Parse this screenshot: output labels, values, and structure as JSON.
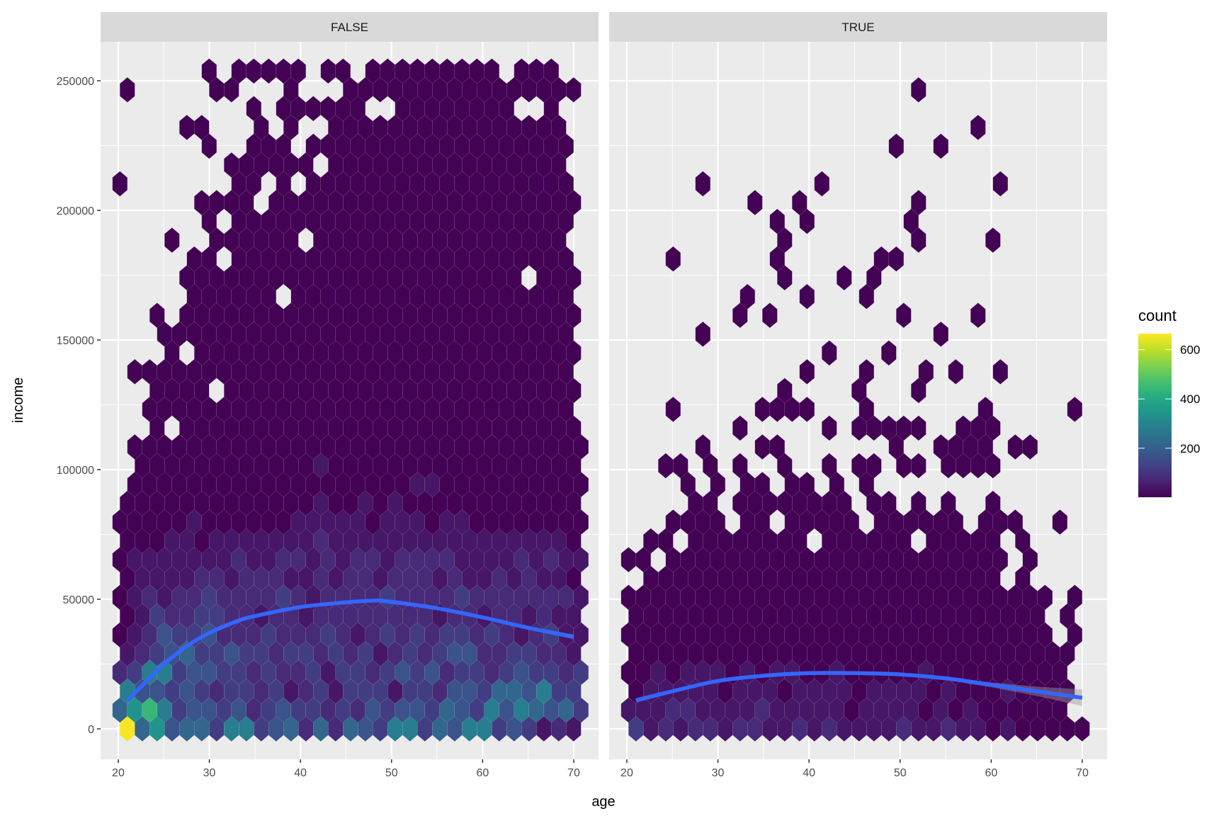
{
  "chart_data": {
    "type": "hexbin",
    "xlabel": "age",
    "ylabel": "income",
    "xlim": [
      18.06,
      72.7
    ],
    "ylim": [
      -11700,
      265000
    ],
    "x_ticks": [
      20,
      30,
      40,
      50,
      60,
      70
    ],
    "x_tick_labels": [
      "20",
      "30",
      "40",
      "50",
      "60",
      "70"
    ],
    "x_minor": [
      25,
      35,
      45,
      55,
      65
    ],
    "y_ticks": [
      0,
      50000,
      100000,
      150000,
      200000,
      250000
    ],
    "y_tick_labels": [
      "0",
      "50000",
      "100000",
      "150000",
      "200000",
      "250000"
    ],
    "y_minor": [
      25000,
      75000,
      125000,
      175000,
      225000
    ],
    "grid": true,
    "hex_grid": {
      "age_origin": 21,
      "age_step": 1.633,
      "odd_row_age_shift": -0.815,
      "income_step": 7250,
      "rows_order": "top row first (row 35) down to row 0 (income 0)",
      "level_counts": {
        "0": 3,
        "1": 40,
        "2": 80,
        "3": 120,
        "4": 170,
        "5": 220,
        "6": 280,
        "7": 340,
        "8": 440,
        "9": 660
      }
    },
    "panels": [
      {
        "label": "FALSE",
        "hex_rows": [
          "......0.00000.00.000000000.000..",
          "0.....00...0...0000000000000000.",
          ".........0.000000..00000000..0..",
          "....00...0.0..0000000000000000..",
          "......0..000.000000000000000000.",
          ".......000000.0000000000000000..",
          "0.......00.0.000000000000000000.",
          ".....0000.000000000000000000000.",
          "......0.00000000000000000000000.",
          "...0..000000.00000000000000000..",
          ".....00.00000000000000000000000.",
          "....00000000000000000000000.000.",
          ".....000000.0000000000000000000.",
          "..0.000000000000000000000000000.",
          "...0000000000000000000000000000.",
          "...0.00000000000000000000000000.",
          ".000000000000000000000000000000.",
          "..0000.000000000000000000000000.",
          "..00000000000000000000000000000.",
          "..0.000000000000000000000000000.",
          ".0000000000000000000000000000000",
          ".000000000000100000000000000000.",
          ".0000000000000000000110000000000",
          "0000000000000100101000000000000.",
          "00000100000011111011101100000000",
          "0001101111111211111111111111110.",
          "01111111211221212212222111121211",
          "0111122122211212212221211212110.",
          "01212232222321222232222322222221",
          "0132233221221222222221221221211.",
          "01243342223222321232323323212311",
          "1234533433233232312323442233221.",
          "23663443323223133234342332343323",
          "6443432332312313331332443554633.",
          "57863443423433232434435436465453",
          "9574553663452525436635466343121."
        ],
        "smooth": {
          "age": [
            21,
            23,
            25,
            27,
            28,
            30,
            33,
            35,
            40,
            45,
            48,
            50,
            55,
            60,
            65,
            70
          ],
          "income": [
            11000,
            18000,
            25000,
            30500,
            33000,
            37000,
            41500,
            43500,
            47000,
            48800,
            49500,
            49000,
            46500,
            43000,
            39000,
            35500
          ],
          "se": [
            900,
            700,
            600,
            500,
            500,
            400,
            400,
            400,
            400,
            400,
            400,
            400,
            400,
            500,
            600,
            900
          ]
        }
      },
      {
        "label": "TRUE",
        "hex_rows": [
          "................................",
          "...................0............",
          "................................",
          ".......................0........",
          "..................0..0..........",
          "................................",
          ".....0.......0...........0......",
          "........0..0.......0............",
          "..........0.0......0............",
          "..........0........0....0.......",
          "...0......0......00.............",
          "..........0...0.0...............",
          "........0...0...0...............",
          ".......0.0........0....0........",
          ".....0...............0..........",
          ".............0...0..............",
          "............0...0...0.0..0......",
          "..........0....0...0............",
          "...0.....0000...0.......0.....0.",
          ".......0.....0.00000..000.......",
          ".....0...00.......0..0000.00....",
          "..00.0.0..0..0.00.00.0000.......",
          "....0.0.00.00.0.0...............",
          "....00.00000000.00.0.0..0.......",
          "...0000.00.00000.000000.000..0..",
          ".00.00000000.000000.00000.0.....",
          "00.00000000000000000000000.0....",
          ".000000000000000000000000.0.....",
          "00000000000000000000000000000.0.",
          "0000000000000000000000000000.0..",
          "00000000000000000000000000000.0.",
          "000000000000000000000000000000..",
          "001011101011001000001000000000..",
          "011111011101111011110100010000..",
          "111221111211111011110101000000..",
          "3121221221121211112112110100000."
        ],
        "smooth": {
          "age": [
            21,
            25,
            30,
            35,
            40,
            45,
            50,
            55,
            60,
            65,
            70
          ],
          "income": [
            11000,
            14500,
            18500,
            20500,
            21500,
            21500,
            21000,
            19500,
            17000,
            14500,
            12000
          ],
          "se": [
            900,
            600,
            500,
            500,
            500,
            500,
            500,
            600,
            900,
            1800,
            3200
          ]
        }
      }
    ],
    "legend": {
      "title": "count",
      "placement": "right",
      "range": [
        1,
        665
      ],
      "ticks": [
        200,
        400,
        600
      ],
      "tick_labels": [
        "200",
        "400",
        "600"
      ],
      "palette": [
        "#440154",
        "#482475",
        "#414487",
        "#355f8d",
        "#2a788e",
        "#21918c",
        "#22a884",
        "#44bf70",
        "#7ad151",
        "#bddf26",
        "#fde725"
      ]
    },
    "colors": {
      "smooth_line": "#3366ff",
      "panel_background": "#ebebeb",
      "strip_background": "#d9d9d9",
      "ribbon": "#999999"
    }
  }
}
